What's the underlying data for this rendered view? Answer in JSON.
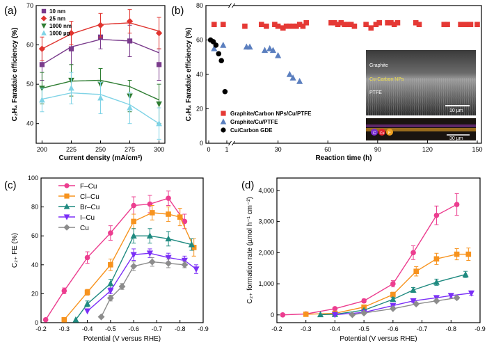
{
  "panel_labels": [
    "(a)",
    "(b)",
    "(c)",
    "(d)"
  ],
  "inset_labels": {
    "graphite": "Graphite",
    "cu_carbon": "Cu-Carbon NPs",
    "ptfe": "PTFE",
    "scale1": "10 µm",
    "scale2": "30 µm",
    "eds_c": "C",
    "eds_cu": "Cu",
    "eds_f": "F"
  },
  "colors": {
    "10nm": "#7a3b8c",
    "25nm": "#e0342f",
    "1000nm": "#2e7d32",
    "1000ug": "#7fd3e6",
    "GCNP": "#e53935",
    "GCu": "#5b7fbf",
    "CuGDE": "#000000",
    "FCu": "#ec3d8f",
    "ClCu": "#f7931e",
    "BrCu": "#1f8a80",
    "ICu": "#7b2ff7",
    "Cu": "#8c8c8c"
  },
  "chart_data": [
    {
      "type": "line",
      "xlabel": "Current density (mA/cm²)",
      "ylabel": "C₂H₄ Faradaic efficiency (%)",
      "xlim": [
        200,
        300
      ],
      "ylim": [
        35,
        70
      ],
      "xticks": [
        200,
        225,
        250,
        275,
        300
      ],
      "yticks": [
        40,
        50,
        60,
        70
      ],
      "legend_position": "top-left",
      "series": [
        {
          "name": "10 nm",
          "color_key": "10nm",
          "marker": "square",
          "x": [
            200,
            225,
            250,
            275,
            300
          ],
          "y": [
            55,
            59,
            62,
            61,
            55
          ],
          "err": [
            4,
            4,
            3,
            4,
            4
          ],
          "fit": [
            55,
            59.5,
            61.4,
            61.0,
            58.0
          ]
        },
        {
          "name": "25 nm",
          "color_key": "25nm",
          "marker": "diamond",
          "x": [
            200,
            225,
            250,
            275,
            300
          ],
          "y": [
            59,
            63,
            65,
            66,
            63
          ],
          "err": [
            3,
            3,
            3,
            3,
            4
          ],
          "fit": [
            59,
            62.8,
            65.2,
            65.6,
            63.5
          ]
        },
        {
          "name": "1000 nm",
          "color_key": "1000nm",
          "marker": "triangle-down",
          "x": [
            200,
            225,
            250,
            275,
            300
          ],
          "y": [
            49,
            51,
            50,
            47,
            45
          ],
          "err": [
            4,
            4,
            4,
            4,
            5
          ],
          "fit": [
            49,
            50.8,
            51.0,
            49.4,
            46.0
          ]
        },
        {
          "name": "1000 µg",
          "color_key": "1000ug",
          "marker": "triangle-up",
          "x": [
            200,
            225,
            250,
            275,
            300
          ],
          "y": [
            46,
            49,
            46.5,
            44,
            40
          ],
          "err": [
            3,
            4,
            4,
            4,
            4
          ],
          "fit": [
            46.2,
            47.8,
            47.4,
            44.8,
            40.0
          ]
        }
      ]
    },
    {
      "type": "scatter",
      "xlabel": "Reaction time (h)",
      "ylabel": "C₂H₄ Faradaic efficiency (%)",
      "ylim": [
        0,
        80
      ],
      "yticks": [
        0,
        20,
        40,
        60,
        80
      ],
      "xticks": [
        0,
        1,
        30,
        60,
        90,
        120,
        150
      ],
      "x_break": [
        1,
        5
      ],
      "legend_position": "bottom-left",
      "series": [
        {
          "name": "Graphite/Carbon NPs/Cu/PTFE",
          "color_key": "GCNP",
          "marker": "square",
          "x": [
            0.3,
            0.8,
            10,
            20,
            23,
            28,
            30,
            33,
            35,
            37,
            39,
            41,
            43,
            45,
            47,
            62,
            64,
            66,
            68,
            70,
            72,
            74,
            76,
            83,
            86,
            89,
            91,
            96,
            98,
            100,
            102,
            113,
            115,
            130,
            132,
            140,
            143,
            146,
            150
          ],
          "y": [
            69,
            69,
            68,
            69,
            68,
            69,
            68,
            67,
            68,
            68,
            68,
            68,
            69,
            68,
            70,
            70,
            70,
            69,
            70,
            69,
            69,
            69,
            68,
            69,
            67,
            69,
            70,
            70,
            70,
            69,
            70,
            70,
            69,
            69,
            69,
            69,
            69,
            69,
            69
          ]
        },
        {
          "name": "Graphite/Cu/PTFE",
          "color_key": "GCu",
          "marker": "triangle-up",
          "x": [
            0.3,
            0.8,
            11,
            13,
            22,
            25,
            27,
            30,
            37,
            39,
            43
          ],
          "y": [
            55,
            57,
            56,
            56,
            54,
            55,
            54,
            51,
            40,
            38,
            36
          ]
        },
        {
          "name": "Cu/Carbon GDE",
          "color_key": "CuGDE",
          "marker": "circle",
          "x": [
            0.1,
            0.25,
            0.4,
            0.55,
            0.7
          ],
          "y": [
            60,
            59,
            57,
            52,
            48
          ]
        },
        {
          "name": "",
          "color_key": "CuGDE",
          "marker": "circle",
          "hidden_legend": true,
          "x": [
            0.9
          ],
          "y": [
            30
          ]
        }
      ]
    },
    {
      "type": "line",
      "xlabel": "Potential (V versus RHE)",
      "ylabel": "C₂₊ FE (%)",
      "xlim": [
        -0.2,
        -0.9
      ],
      "ylim": [
        0,
        100
      ],
      "xticks": [
        -0.2,
        -0.3,
        -0.4,
        -0.5,
        -0.6,
        -0.7,
        -0.8,
        -0.9
      ],
      "yticks": [
        0,
        20,
        40,
        60,
        80,
        100
      ],
      "legend_position": "top-left",
      "series": [
        {
          "name": "F–Cu",
          "color_key": "FCu",
          "marker": "circle",
          "x": [
            -0.22,
            -0.3,
            -0.4,
            -0.5,
            -0.6,
            -0.67,
            -0.75,
            -0.82
          ],
          "y": [
            2,
            22,
            45,
            62,
            81,
            82,
            86,
            70
          ],
          "err": [
            0,
            2,
            4,
            5,
            6,
            6,
            5,
            5
          ]
        },
        {
          "name": "Cl–Cu",
          "color_key": "ClCu",
          "marker": "square",
          "x": [
            -0.3,
            -0.4,
            -0.5,
            -0.6,
            -0.68,
            -0.75,
            -0.8,
            -0.86
          ],
          "y": [
            2,
            21,
            40,
            70,
            76,
            75,
            73,
            52
          ],
          "err": [
            0,
            2,
            4,
            5,
            5,
            5,
            6,
            6
          ]
        },
        {
          "name": "Br–Cu",
          "color_key": "BrCu",
          "marker": "triangle-up",
          "x": [
            -0.35,
            -0.4,
            -0.5,
            -0.6,
            -0.67,
            -0.75,
            -0.85
          ],
          "y": [
            2,
            13,
            27,
            60,
            60,
            58,
            54
          ],
          "err": [
            0,
            2,
            3,
            5,
            5,
            5,
            4
          ]
        },
        {
          "name": "I–Cu",
          "color_key": "ICu",
          "marker": "triangle-down",
          "x": [
            -0.4,
            -0.5,
            -0.6,
            -0.67,
            -0.75,
            -0.82,
            -0.87
          ],
          "y": [
            8,
            22,
            47,
            48,
            45,
            43,
            37
          ],
          "err": [
            0,
            2,
            4,
            3,
            3,
            3,
            3
          ]
        },
        {
          "name": "Cu",
          "color_key": "Cu",
          "marker": "diamond",
          "x": [
            -0.46,
            -0.5,
            -0.55,
            -0.6,
            -0.68,
            -0.75,
            -0.82
          ],
          "y": [
            4,
            17,
            25,
            39,
            42,
            41,
            40
          ],
          "err": [
            0,
            2,
            2,
            3,
            3,
            3,
            2
          ]
        }
      ]
    },
    {
      "type": "line",
      "xlabel": "Potential (V versus RHE)",
      "ylabel": "C₂₊ formation rate (µmol h⁻¹ cm⁻²)",
      "xlim": [
        -0.2,
        -0.9
      ],
      "ylim": [
        -250,
        4400
      ],
      "xticks": [
        -0.2,
        -0.3,
        -0.4,
        -0.5,
        -0.6,
        -0.7,
        -0.8,
        -0.9
      ],
      "yticks": [
        0,
        1000,
        2000,
        3000,
        4000
      ],
      "ytick_labels": [
        "0",
        "1,000",
        "2,000",
        "3,000",
        "4,000"
      ],
      "series": [
        {
          "name": "F–Cu",
          "color_key": "FCu",
          "marker": "circle",
          "x": [
            -0.22,
            -0.3,
            -0.4,
            -0.5,
            -0.6,
            -0.67,
            -0.75,
            -0.82
          ],
          "y": [
            0,
            30,
            200,
            450,
            1000,
            2000,
            3200,
            3550
          ],
          "err": [
            0,
            0,
            0,
            60,
            100,
            220,
            300,
            350
          ]
        },
        {
          "name": "Cl–Cu",
          "color_key": "ClCu",
          "marker": "square",
          "x": [
            -0.3,
            -0.4,
            -0.5,
            -0.6,
            -0.68,
            -0.75,
            -0.82,
            -0.86
          ],
          "y": [
            20,
            50,
            250,
            650,
            1400,
            1800,
            1950,
            1950
          ],
          "err": [
            0,
            0,
            40,
            80,
            150,
            180,
            180,
            200
          ]
        },
        {
          "name": "Br–Cu",
          "color_key": "BrCu",
          "marker": "triangle-up",
          "x": [
            -0.35,
            -0.4,
            -0.5,
            -0.6,
            -0.67,
            -0.75,
            -0.85
          ],
          "y": [
            10,
            20,
            150,
            500,
            800,
            1050,
            1300
          ],
          "err": [
            0,
            0,
            30,
            60,
            80,
            100,
            100
          ]
        },
        {
          "name": "I–Cu",
          "color_key": "ICu",
          "marker": "triangle-down",
          "x": [
            -0.4,
            -0.5,
            -0.6,
            -0.67,
            -0.75,
            -0.8,
            -0.87
          ],
          "y": [
            5,
            80,
            300,
            450,
            550,
            620,
            700
          ],
          "err": [
            0,
            0,
            40,
            50,
            60,
            70,
            70
          ]
        },
        {
          "name": "Cu",
          "color_key": "Cu",
          "marker": "diamond",
          "x": [
            -0.46,
            -0.5,
            -0.6,
            -0.68,
            -0.75,
            -0.82
          ],
          "y": [
            5,
            60,
            200,
            350,
            450,
            550
          ],
          "err": [
            0,
            0,
            30,
            40,
            40,
            50
          ]
        }
      ]
    }
  ]
}
